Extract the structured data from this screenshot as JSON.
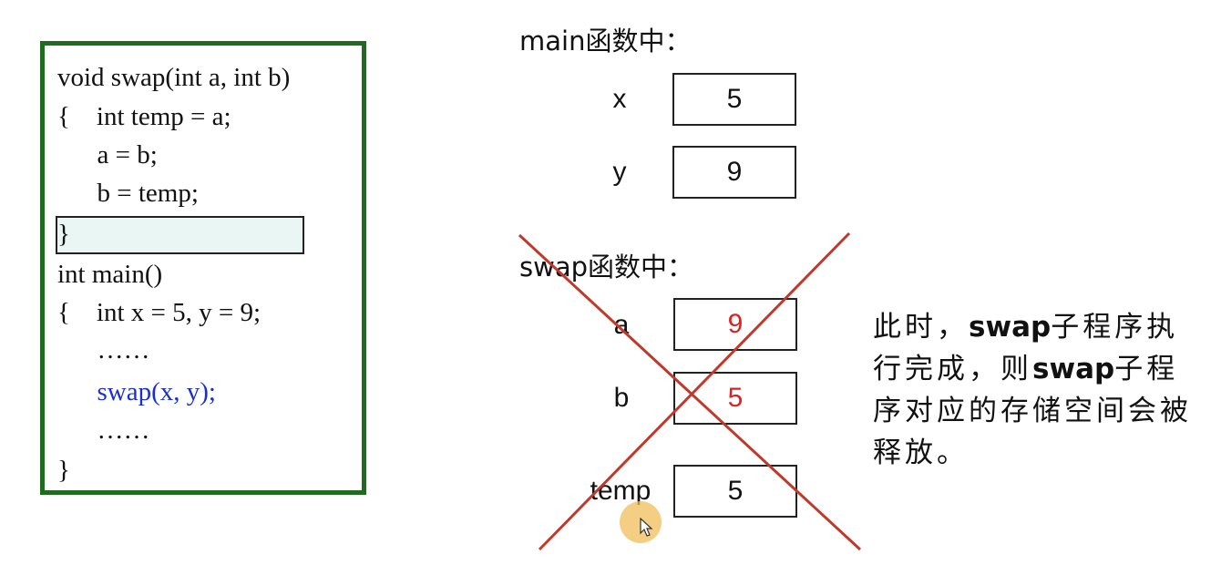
{
  "code": {
    "lines": [
      "void swap(int a, int b)",
      "{    int temp = a;",
      "      a = b;",
      "      b = temp;",
      "}",
      "int main()",
      "{    int x = 5, y = 9;",
      "      ……",
      "      swap(x, y);",
      "      ……",
      "}"
    ]
  },
  "main_section": {
    "title": "main函数中：",
    "vars": [
      {
        "name": "x",
        "value": "5"
      },
      {
        "name": "y",
        "value": "9"
      }
    ]
  },
  "swap_section": {
    "title": "swap函数中：",
    "vars": [
      {
        "name": "a",
        "value": "9"
      },
      {
        "name": "b",
        "value": "5"
      },
      {
        "name": "temp",
        "value": "5"
      }
    ]
  },
  "note": {
    "part1": "此时，",
    "bold1": "swap",
    "part2": "子程序执行完成，则",
    "bold2": "swap",
    "part3": "子程序对应的存储空间会被释放。"
  },
  "colors": {
    "panel_border": "#1f6b1f",
    "call_text": "#1a2fd0",
    "changed_value": "#e02020",
    "cross": "#c0392b"
  }
}
